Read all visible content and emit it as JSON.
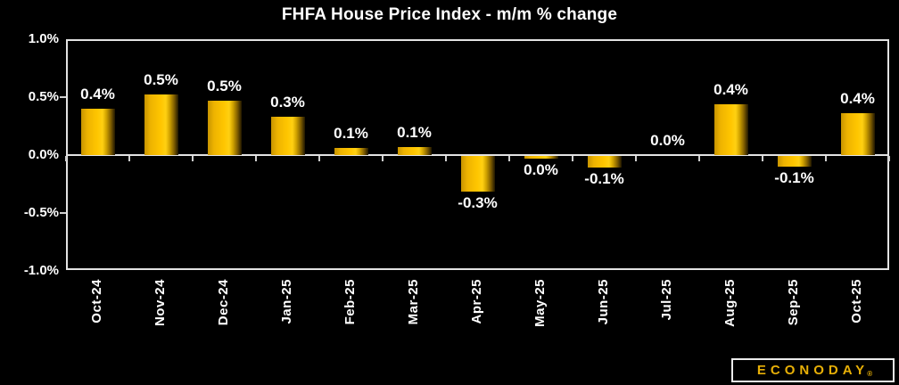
{
  "title": "FHFA House Price Index - m/m % change",
  "branding": {
    "logo_text": "ECONODAY",
    "registered_mark": "®",
    "logo_color": "#e8b007"
  },
  "colors": {
    "background": "#000000",
    "axis": "#e3e3e3",
    "text": "#ffffff",
    "bar_gradient": [
      "#c79400",
      "#ffc600",
      "#ffd012",
      "#463300"
    ]
  },
  "chart_data": {
    "type": "bar",
    "title": "FHFA House Price Index - m/m % change",
    "categories": [
      "Oct-24",
      "Nov-24",
      "Dec-24",
      "Jan-25",
      "Feb-25",
      "Mar-25",
      "Apr-25",
      "May-25",
      "Jun-25",
      "Jul-25",
      "Aug-25",
      "Sep-25",
      "Oct-25"
    ],
    "values": [
      0.4,
      0.52,
      0.47,
      0.33,
      0.06,
      0.07,
      -0.31,
      -0.02,
      -0.1,
      0.0,
      0.44,
      -0.09,
      0.36
    ],
    "labels": [
      "0.4%",
      "0.5%",
      "0.5%",
      "0.3%",
      "0.1%",
      "0.1%",
      "-0.3%",
      "0.0%",
      "-0.1%",
      "0.0%",
      "0.4%",
      "-0.1%",
      "0.4%"
    ],
    "xlabel": "",
    "ylabel": "",
    "ylim": [
      -1.0,
      1.0
    ],
    "yticks": [
      "1.0%",
      "0.5%",
      "0.0%",
      "-0.5%",
      "-1.0%"
    ],
    "grid": false,
    "legend": null,
    "bar_color": "gold-gradient",
    "background": "black"
  }
}
